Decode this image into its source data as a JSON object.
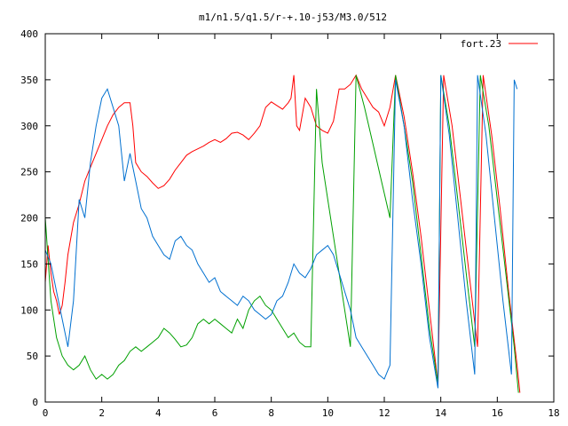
{
  "chart_data": {
    "type": "line",
    "title": "m1/n1.5/q1.5/r-+.10-j53/M3.0/512",
    "xlabel": "",
    "ylabel": "",
    "xlim": [
      0,
      18
    ],
    "ylim": [
      0,
      400
    ],
    "x_ticks": [
      0,
      2,
      4,
      6,
      8,
      10,
      12,
      14,
      16,
      18
    ],
    "y_ticks": [
      0,
      50,
      100,
      150,
      200,
      250,
      300,
      350,
      400
    ],
    "grid": false,
    "legend_position": "top-right",
    "series": [
      {
        "name": "fort.23",
        "color": "#ff0000",
        "points": [
          [
            0,
            130
          ],
          [
            0.1,
            170
          ],
          [
            0.2,
            140
          ],
          [
            0.3,
            120
          ],
          [
            0.4,
            110
          ],
          [
            0.5,
            95
          ],
          [
            0.6,
            105
          ],
          [
            0.7,
            130
          ],
          [
            0.8,
            160
          ],
          [
            1.0,
            195
          ],
          [
            1.2,
            215
          ],
          [
            1.4,
            240
          ],
          [
            1.6,
            255
          ],
          [
            1.8,
            270
          ],
          [
            2.0,
            285
          ],
          [
            2.2,
            300
          ],
          [
            2.4,
            312
          ],
          [
            2.6,
            320
          ],
          [
            2.8,
            325
          ],
          [
            3.0,
            325
          ],
          [
            3.1,
            300
          ],
          [
            3.2,
            260
          ],
          [
            3.4,
            250
          ],
          [
            3.6,
            245
          ],
          [
            3.8,
            238
          ],
          [
            4.0,
            232
          ],
          [
            4.2,
            235
          ],
          [
            4.4,
            242
          ],
          [
            4.6,
            252
          ],
          [
            4.8,
            260
          ],
          [
            5.0,
            268
          ],
          [
            5.2,
            272
          ],
          [
            5.4,
            275
          ],
          [
            5.6,
            278
          ],
          [
            5.8,
            282
          ],
          [
            6.0,
            285
          ],
          [
            6.2,
            282
          ],
          [
            6.4,
            286
          ],
          [
            6.6,
            292
          ],
          [
            6.8,
            293
          ],
          [
            7.0,
            290
          ],
          [
            7.2,
            285
          ],
          [
            7.4,
            292
          ],
          [
            7.6,
            300
          ],
          [
            7.8,
            320
          ],
          [
            8.0,
            326
          ],
          [
            8.2,
            322
          ],
          [
            8.4,
            318
          ],
          [
            8.6,
            325
          ],
          [
            8.7,
            330
          ],
          [
            8.8,
            355
          ],
          [
            8.9,
            300
          ],
          [
            9.0,
            295
          ],
          [
            9.2,
            330
          ],
          [
            9.4,
            320
          ],
          [
            9.6,
            300
          ],
          [
            9.8,
            295
          ],
          [
            10.0,
            292
          ],
          [
            10.2,
            305
          ],
          [
            10.4,
            340
          ],
          [
            10.6,
            340
          ],
          [
            10.8,
            345
          ],
          [
            11.0,
            355
          ],
          [
            11.2,
            340
          ],
          [
            11.4,
            330
          ],
          [
            11.6,
            320
          ],
          [
            11.8,
            315
          ],
          [
            12.0,
            300
          ],
          [
            12.2,
            320
          ],
          [
            12.4,
            355
          ],
          [
            12.7,
            310
          ],
          [
            13.0,
            250
          ],
          [
            13.3,
            180
          ],
          [
            13.6,
            100
          ],
          [
            13.9,
            20
          ],
          [
            14.1,
            355
          ],
          [
            14.4,
            300
          ],
          [
            14.7,
            220
          ],
          [
            15.0,
            140
          ],
          [
            15.3,
            60
          ],
          [
            15.5,
            355
          ],
          [
            15.8,
            290
          ],
          [
            16.1,
            210
          ],
          [
            16.4,
            120
          ],
          [
            16.7,
            40
          ],
          [
            16.8,
            10
          ]
        ]
      },
      {
        "name": "",
        "color": "#00a000",
        "points": [
          [
            0,
            200
          ],
          [
            0.2,
            110
          ],
          [
            0.4,
            70
          ],
          [
            0.6,
            50
          ],
          [
            0.8,
            40
          ],
          [
            1.0,
            35
          ],
          [
            1.2,
            40
          ],
          [
            1.4,
            50
          ],
          [
            1.6,
            35
          ],
          [
            1.8,
            25
          ],
          [
            2.0,
            30
          ],
          [
            2.2,
            25
          ],
          [
            2.4,
            30
          ],
          [
            2.6,
            40
          ],
          [
            2.8,
            45
          ],
          [
            3.0,
            55
          ],
          [
            3.2,
            60
          ],
          [
            3.4,
            55
          ],
          [
            3.6,
            60
          ],
          [
            3.8,
            65
          ],
          [
            4.0,
            70
          ],
          [
            4.2,
            80
          ],
          [
            4.4,
            75
          ],
          [
            4.6,
            68
          ],
          [
            4.8,
            60
          ],
          [
            5.0,
            62
          ],
          [
            5.2,
            70
          ],
          [
            5.4,
            85
          ],
          [
            5.6,
            90
          ],
          [
            5.8,
            85
          ],
          [
            6.0,
            90
          ],
          [
            6.2,
            85
          ],
          [
            6.4,
            80
          ],
          [
            6.6,
            75
          ],
          [
            6.8,
            90
          ],
          [
            7.0,
            80
          ],
          [
            7.2,
            100
          ],
          [
            7.4,
            110
          ],
          [
            7.6,
            115
          ],
          [
            7.8,
            105
          ],
          [
            8.0,
            100
          ],
          [
            8.2,
            90
          ],
          [
            8.4,
            80
          ],
          [
            8.6,
            70
          ],
          [
            8.8,
            75
          ],
          [
            9.0,
            65
          ],
          [
            9.2,
            60
          ],
          [
            9.4,
            60
          ],
          [
            9.6,
            340
          ],
          [
            9.8,
            260
          ],
          [
            10.0,
            220
          ],
          [
            10.2,
            180
          ],
          [
            10.4,
            140
          ],
          [
            10.6,
            100
          ],
          [
            10.8,
            60
          ],
          [
            11.0,
            355
          ],
          [
            11.3,
            320
          ],
          [
            11.6,
            280
          ],
          [
            11.9,
            240
          ],
          [
            12.2,
            200
          ],
          [
            12.4,
            355
          ],
          [
            12.7,
            300
          ],
          [
            13.0,
            240
          ],
          [
            13.3,
            160
          ],
          [
            13.6,
            80
          ],
          [
            13.9,
            20
          ],
          [
            14.0,
            355
          ],
          [
            14.3,
            300
          ],
          [
            14.6,
            220
          ],
          [
            14.9,
            140
          ],
          [
            15.2,
            60
          ],
          [
            15.4,
            355
          ],
          [
            15.7,
            300
          ],
          [
            16.0,
            220
          ],
          [
            16.3,
            140
          ],
          [
            16.6,
            60
          ],
          [
            16.75,
            10
          ]
        ]
      },
      {
        "name": "",
        "color": "#0070d0",
        "points": [
          [
            0,
            165
          ],
          [
            0.2,
            150
          ],
          [
            0.4,
            120
          ],
          [
            0.6,
            90
          ],
          [
            0.8,
            60
          ],
          [
            1.0,
            110
          ],
          [
            1.2,
            220
          ],
          [
            1.4,
            200
          ],
          [
            1.6,
            260
          ],
          [
            1.8,
            300
          ],
          [
            2.0,
            330
          ],
          [
            2.2,
            340
          ],
          [
            2.4,
            320
          ],
          [
            2.6,
            300
          ],
          [
            2.8,
            240
          ],
          [
            3.0,
            270
          ],
          [
            3.2,
            240
          ],
          [
            3.4,
            210
          ],
          [
            3.6,
            200
          ],
          [
            3.8,
            180
          ],
          [
            4.0,
            170
          ],
          [
            4.2,
            160
          ],
          [
            4.4,
            155
          ],
          [
            4.6,
            175
          ],
          [
            4.8,
            180
          ],
          [
            5.0,
            170
          ],
          [
            5.2,
            165
          ],
          [
            5.4,
            150
          ],
          [
            5.6,
            140
          ],
          [
            5.8,
            130
          ],
          [
            6.0,
            135
          ],
          [
            6.2,
            120
          ],
          [
            6.4,
            115
          ],
          [
            6.6,
            110
          ],
          [
            6.8,
            105
          ],
          [
            7.0,
            115
          ],
          [
            7.2,
            110
          ],
          [
            7.4,
            100
          ],
          [
            7.6,
            95
          ],
          [
            7.8,
            90
          ],
          [
            8.0,
            95
          ],
          [
            8.2,
            110
          ],
          [
            8.4,
            115
          ],
          [
            8.6,
            130
          ],
          [
            8.8,
            150
          ],
          [
            9.0,
            140
          ],
          [
            9.2,
            135
          ],
          [
            9.4,
            145
          ],
          [
            9.6,
            160
          ],
          [
            9.8,
            165
          ],
          [
            10.0,
            170
          ],
          [
            10.2,
            160
          ],
          [
            10.4,
            140
          ],
          [
            10.6,
            120
          ],
          [
            10.8,
            100
          ],
          [
            11.0,
            70
          ],
          [
            11.2,
            60
          ],
          [
            11.4,
            50
          ],
          [
            11.6,
            40
          ],
          [
            11.8,
            30
          ],
          [
            12.0,
            25
          ],
          [
            12.2,
            40
          ],
          [
            12.4,
            350
          ],
          [
            12.7,
            300
          ],
          [
            13.0,
            220
          ],
          [
            13.3,
            150
          ],
          [
            13.6,
            70
          ],
          [
            13.9,
            15
          ],
          [
            14.0,
            355
          ],
          [
            14.3,
            290
          ],
          [
            14.6,
            200
          ],
          [
            14.9,
            110
          ],
          [
            15.2,
            30
          ],
          [
            15.3,
            355
          ],
          [
            15.6,
            290
          ],
          [
            15.9,
            200
          ],
          [
            16.2,
            110
          ],
          [
            16.5,
            30
          ],
          [
            16.6,
            350
          ],
          [
            16.7,
            340
          ]
        ]
      }
    ]
  }
}
